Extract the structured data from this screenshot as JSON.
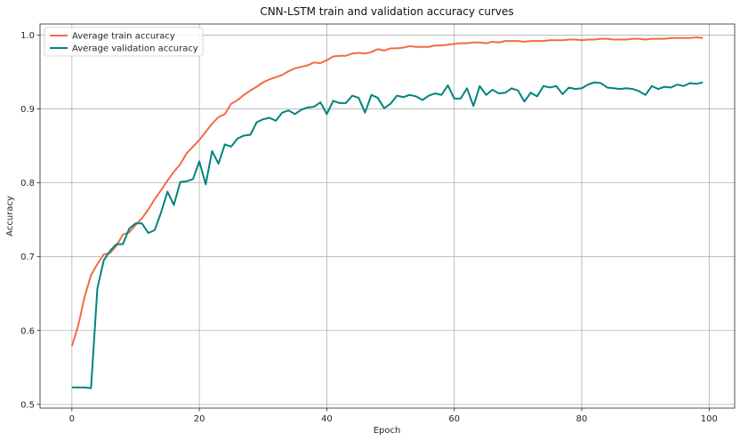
{
  "chart_data": {
    "type": "line",
    "title": "CNN-LSTM train and validation accuracy curves",
    "xlabel": "Epoch",
    "ylabel": "Accuracy",
    "xlim": [
      -5,
      104
    ],
    "ylim": [
      0.495,
      1.015
    ],
    "xticks": [
      0,
      20,
      40,
      60,
      80,
      100
    ],
    "yticks": [
      0.5,
      0.6,
      0.7,
      0.8,
      0.9,
      1.0
    ],
    "ytick_labels": [
      "0.5",
      "0.6",
      "0.7",
      "0.8",
      "0.9",
      "1.0"
    ],
    "grid": true,
    "legend_position": "top-left",
    "series": [
      {
        "name": "Average train accuracy",
        "color": "#f26b45",
        "values": [
          0.579,
          0.607,
          0.646,
          0.675,
          0.69,
          0.703,
          0.705,
          0.715,
          0.73,
          0.733,
          0.743,
          0.752,
          0.764,
          0.778,
          0.79,
          0.803,
          0.815,
          0.825,
          0.84,
          0.849,
          0.858,
          0.869,
          0.88,
          0.889,
          0.893,
          0.907,
          0.912,
          0.919,
          0.925,
          0.93,
          0.936,
          0.94,
          0.943,
          0.946,
          0.951,
          0.955,
          0.957,
          0.959,
          0.963,
          0.962,
          0.966,
          0.971,
          0.972,
          0.972,
          0.975,
          0.976,
          0.975,
          0.977,
          0.981,
          0.979,
          0.982,
          0.982,
          0.983,
          0.985,
          0.984,
          0.984,
          0.984,
          0.986,
          0.986,
          0.987,
          0.988,
          0.989,
          0.989,
          0.99,
          0.99,
          0.989,
          0.991,
          0.99,
          0.992,
          0.992,
          0.992,
          0.991,
          0.992,
          0.992,
          0.992,
          0.993,
          0.993,
          0.993,
          0.994,
          0.994,
          0.993,
          0.994,
          0.994,
          0.995,
          0.995,
          0.994,
          0.994,
          0.994,
          0.995,
          0.995,
          0.994,
          0.995,
          0.995,
          0.995,
          0.996,
          0.996,
          0.996,
          0.996,
          0.997,
          0.996
        ]
      },
      {
        "name": "Average validation accuracy",
        "color": "#00847c",
        "values": [
          0.523,
          0.523,
          0.523,
          0.522,
          0.657,
          0.695,
          0.708,
          0.717,
          0.717,
          0.738,
          0.745,
          0.745,
          0.732,
          0.736,
          0.76,
          0.788,
          0.77,
          0.801,
          0.802,
          0.805,
          0.829,
          0.798,
          0.843,
          0.826,
          0.852,
          0.849,
          0.86,
          0.864,
          0.865,
          0.882,
          0.886,
          0.888,
          0.884,
          0.895,
          0.898,
          0.893,
          0.899,
          0.902,
          0.903,
          0.909,
          0.893,
          0.911,
          0.908,
          0.908,
          0.918,
          0.915,
          0.895,
          0.919,
          0.915,
          0.901,
          0.907,
          0.918,
          0.916,
          0.919,
          0.917,
          0.912,
          0.918,
          0.921,
          0.919,
          0.932,
          0.914,
          0.914,
          0.928,
          0.904,
          0.931,
          0.919,
          0.926,
          0.921,
          0.922,
          0.928,
          0.925,
          0.91,
          0.922,
          0.917,
          0.931,
          0.929,
          0.931,
          0.92,
          0.929,
          0.927,
          0.928,
          0.933,
          0.936,
          0.935,
          0.929,
          0.928,
          0.927,
          0.928,
          0.927,
          0.924,
          0.919,
          0.931,
          0.927,
          0.93,
          0.929,
          0.933,
          0.931,
          0.935,
          0.934,
          0.936
        ]
      }
    ]
  }
}
